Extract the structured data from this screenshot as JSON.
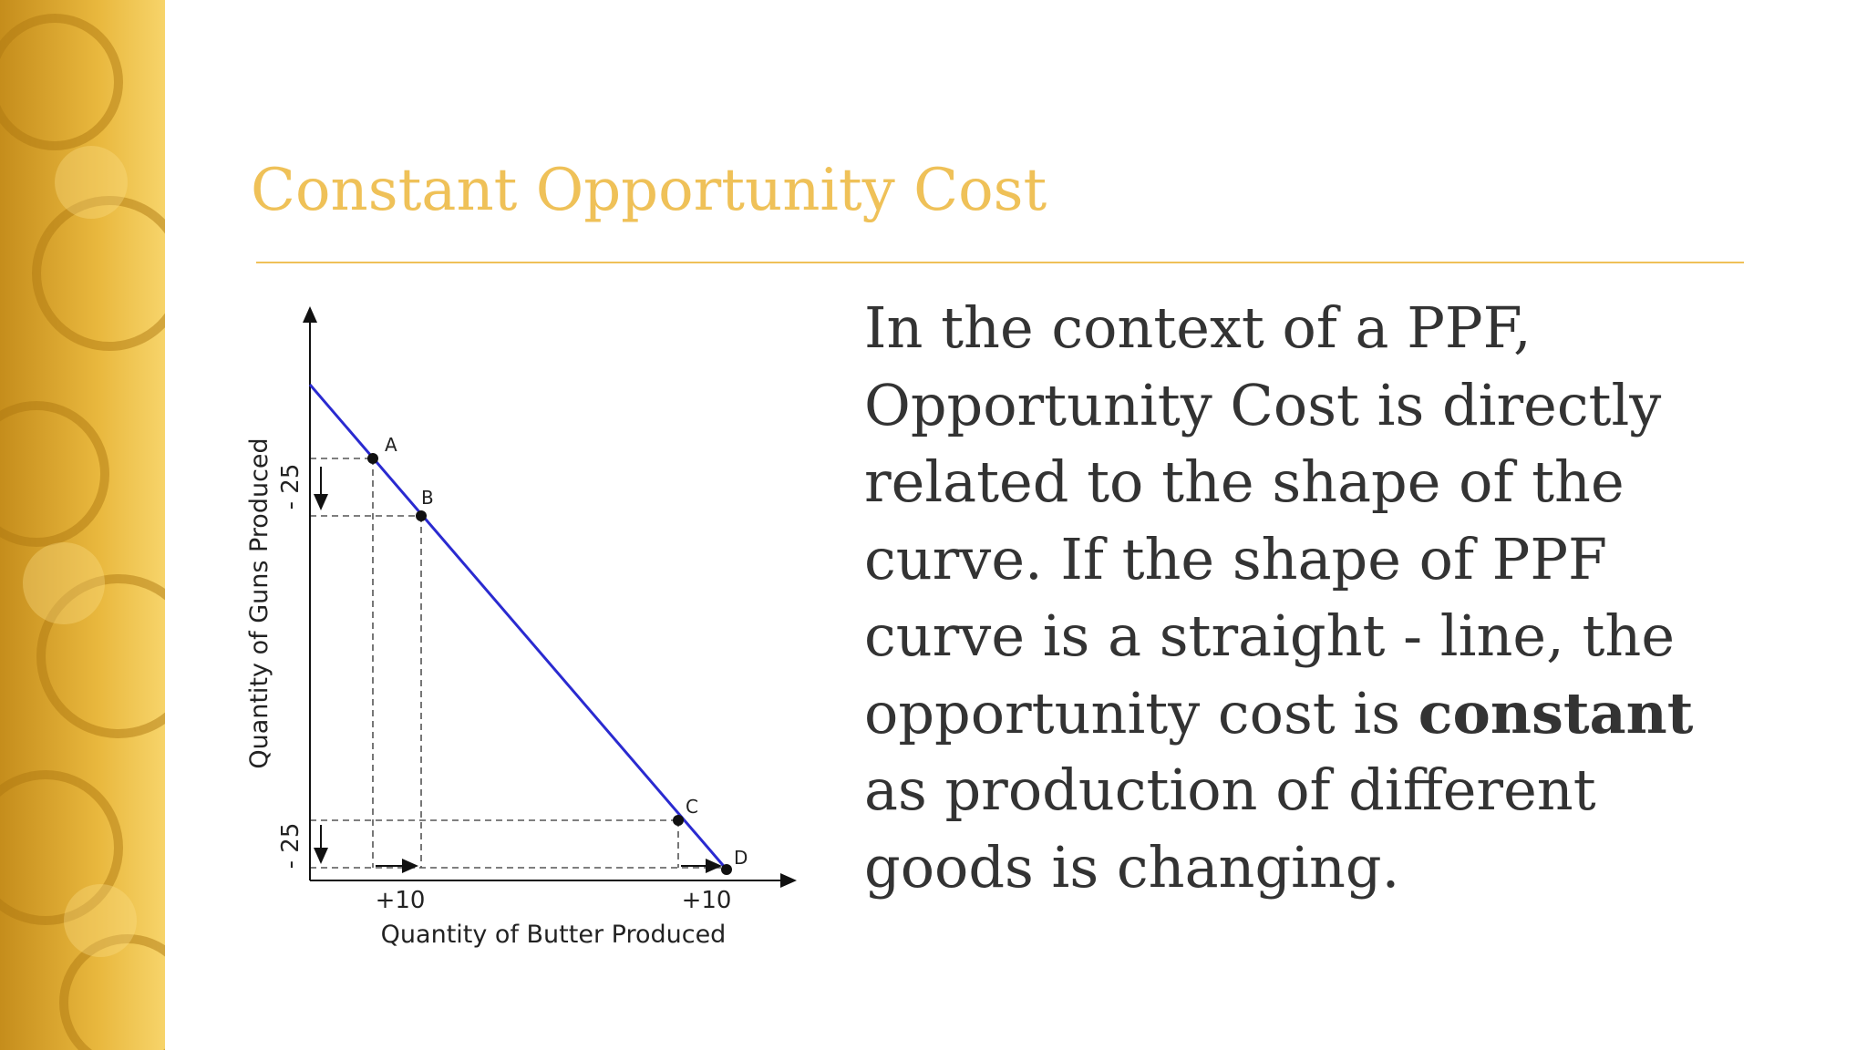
{
  "title": "Constant Opportunity Cost",
  "body": {
    "parts": [
      "In the context of a PPF, Opportunity Cost is directly related to the shape of the curve. If the shape of PPF curve is a straight - line, the opportunity cost is ",
      "constant",
      " as production of different goods is changing."
    ]
  },
  "diagram": {
    "x_axis_label": "Quantity of Butter Produced",
    "y_axis_label": "Quantity of Guns Produced",
    "x_change_labels": [
      "+10",
      "+10"
    ],
    "y_change_labels": [
      "- 25",
      "- 25"
    ],
    "points": [
      "A",
      "B",
      "C",
      "D"
    ]
  }
}
